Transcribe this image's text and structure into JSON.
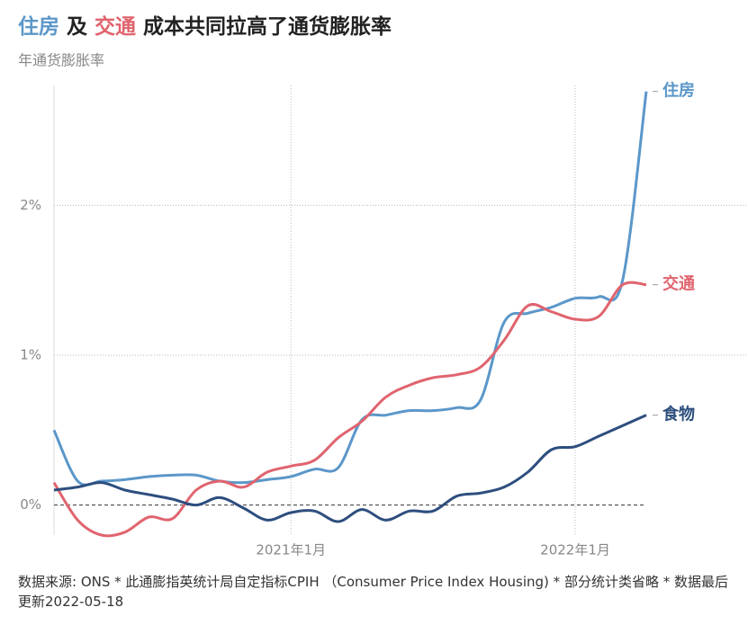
{
  "chart_data": {
    "type": "line",
    "title": [
      {
        "text": "住房",
        "color": "#5b97c9"
      },
      {
        "text": "及",
        "color": "#222222"
      },
      {
        "text": "交通",
        "color": "#e0646e"
      },
      {
        "text": "成本共同拉高了通货膨胀率",
        "color": "#222222"
      }
    ],
    "subtitle": "年通货膨胀率",
    "x": [
      "2020-03",
      "2020-04",
      "2020-05",
      "2020-06",
      "2020-07",
      "2020-08",
      "2020-09",
      "2020-10",
      "2020-11",
      "2020-12",
      "2021-01",
      "2021-02",
      "2021-03",
      "2021-04",
      "2021-05",
      "2021-06",
      "2021-07",
      "2021-08",
      "2021-09",
      "2021-10",
      "2021-11",
      "2021-12",
      "2022-01",
      "2022-02",
      "2022-03",
      "2022-04"
    ],
    "xticks": [
      {
        "value": "2021-01",
        "label": "2021年1月"
      },
      {
        "value": "2022-01",
        "label": "2022年1月"
      }
    ],
    "ylim": [
      -0.2,
      2.8
    ],
    "yticks": [
      {
        "value": 0,
        "label": "0%"
      },
      {
        "value": 1,
        "label": "1%"
      },
      {
        "value": 2,
        "label": "2%"
      }
    ],
    "grid": true,
    "series": [
      {
        "name": "住房",
        "color": "#5b97c9",
        "values": [
          0.5,
          0.16,
          0.16,
          0.17,
          0.19,
          0.2,
          0.2,
          0.16,
          0.15,
          0.17,
          0.19,
          0.24,
          0.25,
          0.57,
          0.6,
          0.63,
          0.63,
          0.65,
          0.7,
          1.22,
          1.28,
          1.32,
          1.38,
          1.39,
          1.5,
          2.76
        ]
      },
      {
        "name": "交通",
        "color": "#e0646e",
        "values": [
          0.15,
          -0.1,
          -0.2,
          -0.18,
          -0.08,
          -0.09,
          0.1,
          0.16,
          0.12,
          0.22,
          0.26,
          0.3,
          0.45,
          0.56,
          0.72,
          0.8,
          0.85,
          0.87,
          0.92,
          1.1,
          1.33,
          1.29,
          1.24,
          1.26,
          1.47,
          1.47
        ]
      },
      {
        "name": "食物",
        "color": "#2d4e7e",
        "values": [
          0.1,
          0.12,
          0.15,
          0.1,
          0.07,
          0.04,
          0.0,
          0.05,
          -0.02,
          -0.1,
          -0.05,
          -0.04,
          -0.11,
          -0.03,
          -0.1,
          -0.04,
          -0.04,
          0.06,
          0.08,
          0.12,
          0.22,
          0.37,
          0.39,
          0.46,
          0.53,
          0.6
        ]
      }
    ],
    "source": "数据来源: ONS * 此通膨指英统计局自定指标CPIH （Consumer Price Index Housing) * 部分统计类省略 * 数据最后更新2022-05-18"
  }
}
